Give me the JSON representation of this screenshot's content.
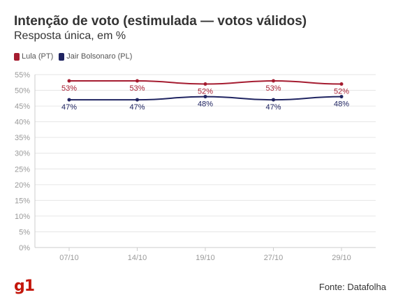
{
  "header": {
    "title": "Intenção de voto (estimulada — votos válidos)",
    "subtitle": "Resposta única, em %"
  },
  "footer": {
    "logo": "g1",
    "source": "Fonte: Datafolha"
  },
  "colors": {
    "lula": "#a51c30",
    "bolsonaro": "#1f2461",
    "logo": "#c4170c",
    "grid": "#e6e6e6",
    "axis_text": "#999999"
  },
  "chart_data": {
    "type": "line",
    "categories": [
      "07/10",
      "14/10",
      "19/10",
      "27/10",
      "29/10"
    ],
    "series": [
      {
        "name": "Lula (PT)",
        "values": [
          53,
          53,
          52,
          53,
          52
        ],
        "labels": [
          "53%",
          "53%",
          "52%",
          "53%",
          "52%"
        ]
      },
      {
        "name": "Jair Bolsonaro (PL)",
        "values": [
          47,
          47,
          48,
          47,
          48
        ],
        "labels": [
          "47%",
          "47%",
          "48%",
          "47%",
          "48%"
        ]
      }
    ],
    "ylim": [
      0,
      55
    ],
    "yticks": [
      0,
      5,
      10,
      15,
      20,
      25,
      30,
      35,
      40,
      45,
      50,
      55
    ],
    "ytick_labels": [
      "0%",
      "5%",
      "10%",
      "15%",
      "20%",
      "25%",
      "30%",
      "35%",
      "40%",
      "45%",
      "50%",
      "55%"
    ],
    "grid": true,
    "legend": "top-left"
  }
}
